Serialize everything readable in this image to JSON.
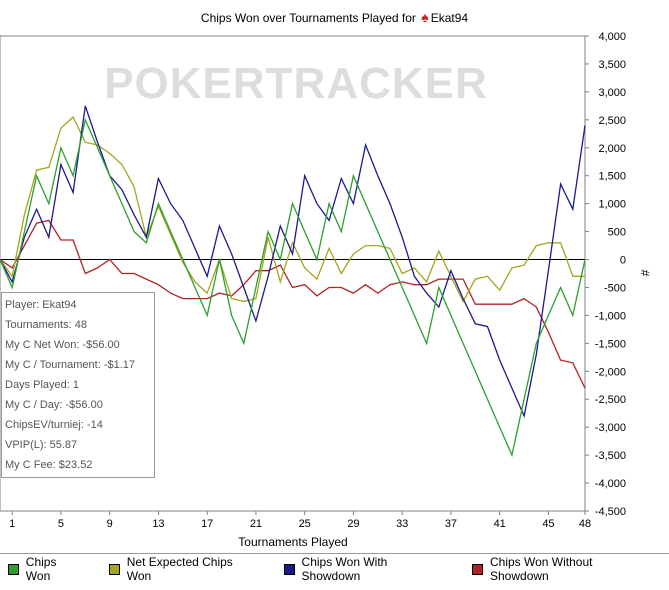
{
  "chart_data": {
    "type": "line",
    "title_prefix": "Chips Won over Tournaments Played for",
    "player_name": "Ekat94",
    "watermark": "POKERTRACKER",
    "xlabel": "Tournaments Played",
    "ylabel": "#",
    "xlim": [
      0,
      48
    ],
    "ylim": [
      -4500,
      4000
    ],
    "x_ticks": [
      1,
      5,
      9,
      13,
      17,
      21,
      25,
      29,
      33,
      37,
      41,
      45,
      48
    ],
    "y_ticks": [
      4000,
      3500,
      3000,
      2500,
      2000,
      1500,
      1000,
      500,
      0,
      -500,
      -1000,
      -1500,
      -2000,
      -2500,
      -3000,
      -3500,
      -4000,
      -4500
    ],
    "x": [
      0,
      1,
      2,
      3,
      4,
      5,
      6,
      7,
      8,
      9,
      10,
      11,
      12,
      13,
      14,
      15,
      16,
      17,
      18,
      19,
      20,
      21,
      22,
      23,
      24,
      25,
      26,
      27,
      28,
      29,
      30,
      31,
      32,
      33,
      34,
      35,
      36,
      37,
      38,
      39,
      40,
      41,
      42,
      43,
      44,
      45,
      46,
      47,
      48
    ],
    "series": [
      {
        "name": "Chips Won",
        "color": "#2ca02c",
        "values": [
          0,
          -500,
          500,
          1500,
          1000,
          2000,
          1500,
          2500,
          2000,
          1500,
          1000,
          500,
          300,
          1000,
          500,
          0,
          -500,
          -1000,
          0,
          -1000,
          -1500,
          -500,
          500,
          0,
          1000,
          500,
          0,
          1000,
          500,
          1500,
          1000,
          500,
          0,
          -500,
          -1000,
          -1500,
          -500,
          -1000,
          -1500,
          -2000,
          -2500,
          -3000,
          -3500,
          -2500,
          -1500,
          -1000,
          -500,
          -1000,
          0
        ]
      },
      {
        "name": "Net Expected Chips Won",
        "color": "#a5a51e",
        "values": [
          0,
          -300,
          800,
          1600,
          1650,
          2350,
          2550,
          2100,
          2050,
          1900,
          1700,
          1300,
          400,
          950,
          450,
          -50,
          -400,
          -600,
          0,
          -700,
          -750,
          -700,
          400,
          -400,
          300,
          -150,
          -350,
          200,
          -250,
          100,
          250,
          250,
          200,
          -250,
          -150,
          -400,
          150,
          -300,
          -750,
          -350,
          -300,
          -550,
          -150,
          -100,
          250,
          300,
          300,
          -300,
          -300
        ]
      },
      {
        "name": "Chips Won With Showdown",
        "color": "#1a1a8c",
        "values": [
          0,
          -400,
          400,
          900,
          400,
          1700,
          1200,
          2750,
          2100,
          1500,
          1250,
          800,
          400,
          1450,
          1000,
          700,
          200,
          -300,
          600,
          100,
          -500,
          -1100,
          -300,
          600,
          100,
          1500,
          1000,
          700,
          1450,
          1000,
          2050,
          1500,
          1000,
          400,
          -300,
          -600,
          -850,
          -200,
          -700,
          -1150,
          -1200,
          -1800,
          -2300,
          -2800,
          -1700,
          -200,
          1350,
          900,
          2400
        ]
      },
      {
        "name": "Chips Won Without Showdown",
        "color": "#b22222",
        "values": [
          0,
          -150,
          250,
          650,
          700,
          350,
          350,
          -250,
          -150,
          0,
          -250,
          -250,
          -350,
          -450,
          -600,
          -700,
          -700,
          -700,
          -600,
          -650,
          -450,
          -200,
          -200,
          -100,
          -500,
          -450,
          -650,
          -500,
          -500,
          -600,
          -450,
          -600,
          -450,
          -400,
          -450,
          -450,
          -350,
          -350,
          -350,
          -800,
          -800,
          -800,
          -800,
          -700,
          -850,
          -1300,
          -1800,
          -1850,
          -2300
        ]
      }
    ],
    "grid": false,
    "legend_position": "bottom",
    "stats_box_position": "left"
  },
  "stats": [
    "Player: Ekat94",
    "Tournaments: 48",
    "My C Net Won: -$56.00",
    "My C / Tournament: -$1.17",
    "Days Played: 1",
    "My C / Day: -$56.00",
    "ChipsEV/turniej: -14",
    "VPIP(L): 55.87",
    "My C Fee: $23.52"
  ]
}
